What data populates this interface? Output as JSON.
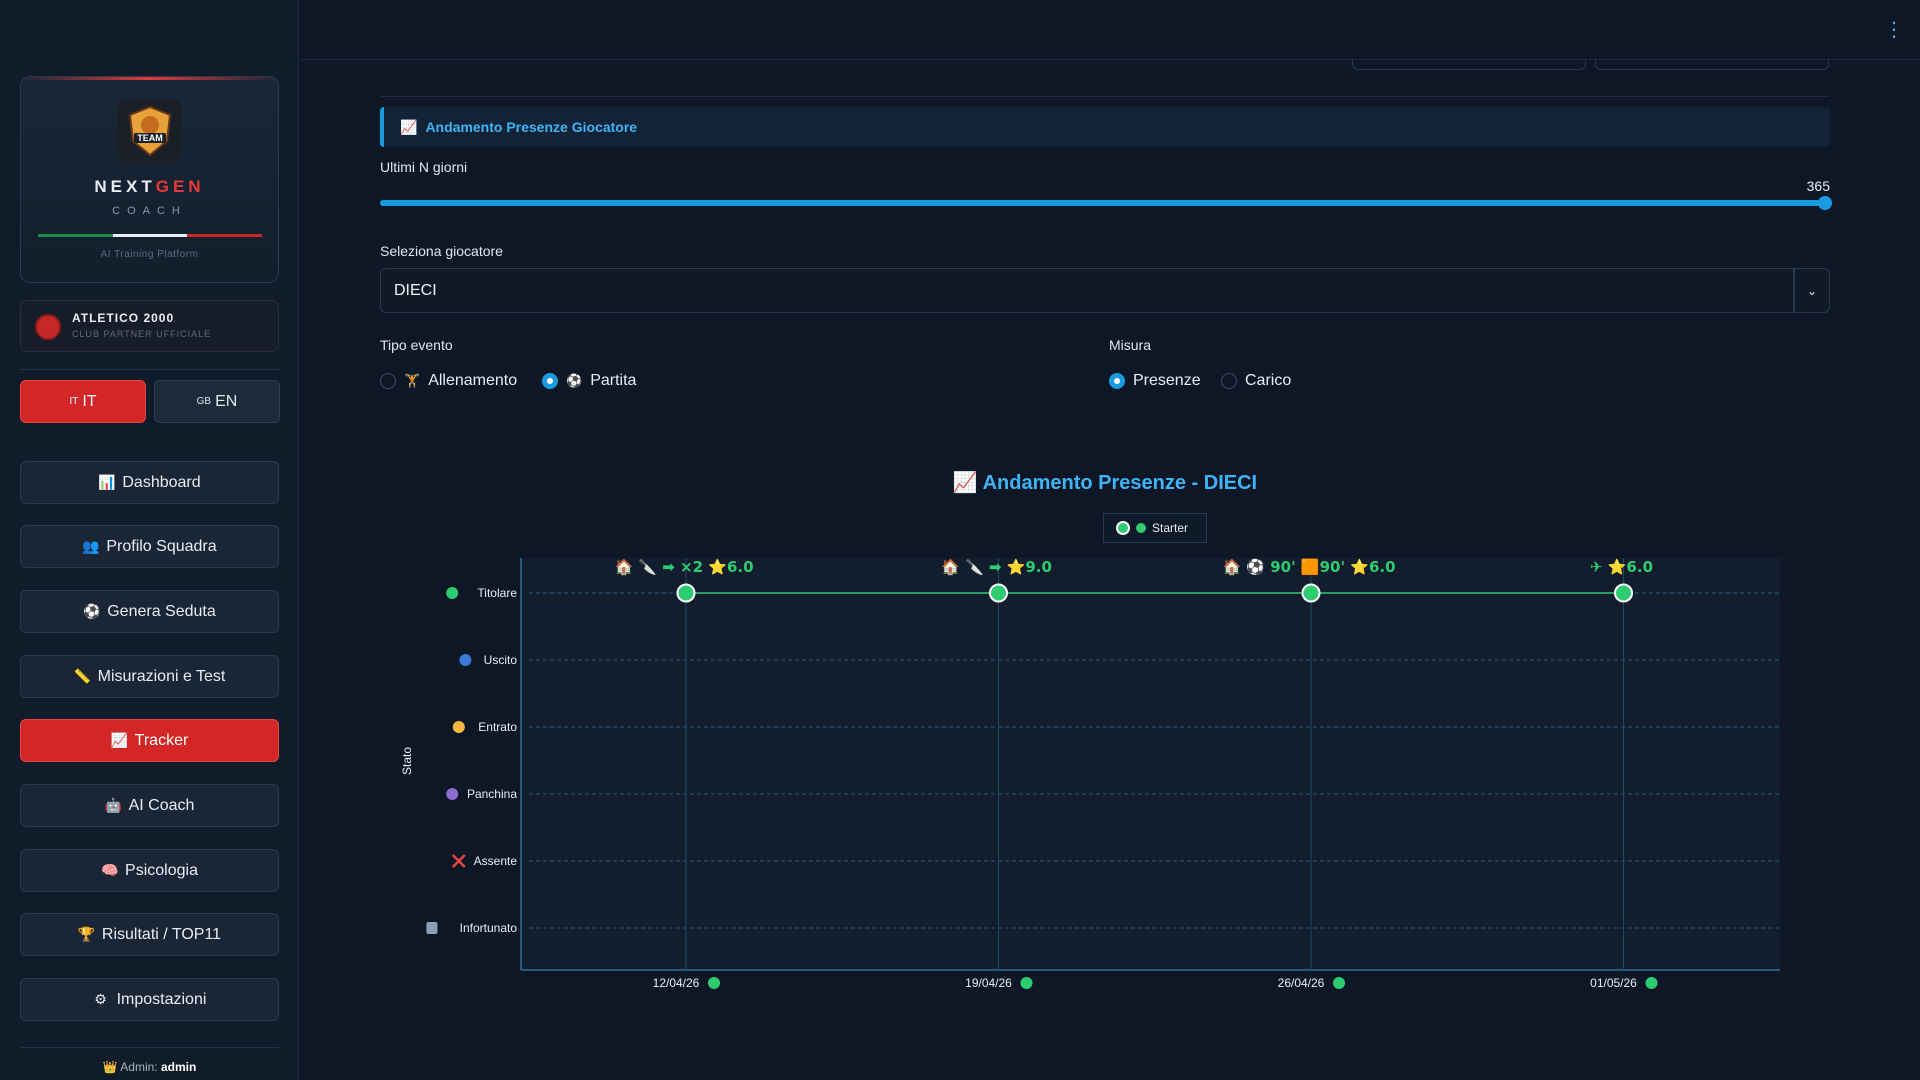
{
  "brand": {
    "name_a": "NEXT",
    "name_b": "GEN",
    "sub": "COACH",
    "tagline": "AI Training Platform",
    "logo_text": "TEAM"
  },
  "club": {
    "name": "ATLETICO 2000",
    "subtitle": "CLUB PARTNER UFFICIALE"
  },
  "lang": {
    "it": {
      "code": "IT",
      "flag": "IT"
    },
    "en": {
      "code": "EN",
      "flag": "GB"
    }
  },
  "nav": [
    {
      "label": "Dashboard",
      "icon": "📊"
    },
    {
      "label": "Profilo Squadra",
      "icon": "👥"
    },
    {
      "label": "Genera Seduta",
      "icon": "⚽"
    },
    {
      "label": "Misurazioni e Test",
      "icon": "📏"
    },
    {
      "label": "Tracker",
      "icon": "📈"
    },
    {
      "label": "AI Coach",
      "icon": "🤖"
    },
    {
      "label": "Psicologia",
      "icon": "🧠"
    },
    {
      "label": "Risultati / TOP11",
      "icon": "🏆"
    },
    {
      "label": "Impostazioni",
      "icon": "⚙"
    }
  ],
  "admin": {
    "prefix": "Admin:",
    "user": "admin"
  },
  "section": {
    "title": "Andamento Presenze Giocatore",
    "icon": "📈"
  },
  "slider": {
    "label": "Ultimi N giorni",
    "value": "365",
    "fraction": 1.0
  },
  "player": {
    "label": "Seleziona giocatore",
    "value": "DIECI"
  },
  "event_type": {
    "label": "Tipo evento",
    "options": [
      {
        "label": "Allenamento",
        "icon": "🏋",
        "selected": false
      },
      {
        "label": "Partita",
        "icon": "⚽",
        "selected": true
      }
    ]
  },
  "measure": {
    "label": "Misura",
    "options": [
      {
        "label": "Presenze",
        "selected": true
      },
      {
        "label": "Carico",
        "selected": false
      }
    ]
  },
  "chart_title": "Andamento Presenze - DIECI",
  "chart_title_icon": "📈",
  "legend": {
    "label": "Starter"
  },
  "colors": {
    "accent": "#1a9be0",
    "danger": "#d32626",
    "starter": "#2ecc71"
  },
  "chart_data": {
    "type": "scatter",
    "ylabel": "Stato",
    "y_categories": [
      {
        "label": "Titolare",
        "marker": "green-dot"
      },
      {
        "label": "Uscito",
        "marker": "blue-dot"
      },
      {
        "label": "Entrato",
        "marker": "yellow-dot"
      },
      {
        "label": "Panchina",
        "marker": "purple-dot"
      },
      {
        "label": "Assente",
        "marker": "red-x"
      },
      {
        "label": "Infortunato",
        "marker": "hospital"
      }
    ],
    "x": [
      "12/04/26",
      "19/04/26",
      "26/04/26",
      "01/05/26"
    ],
    "series": [
      {
        "name": "Starter",
        "values": [
          "Titolare",
          "Titolare",
          "Titolare",
          "Titolare"
        ]
      }
    ],
    "annotations": [
      {
        "icons": "🏠 🔪 ➡",
        "text": "×2",
        "rating": "6.0"
      },
      {
        "icons": "🏠 🔪 ➡",
        "text": "",
        "rating": "9.0"
      },
      {
        "icons": "🏠 ⚽",
        "text": "90' 🟧90'",
        "rating": "6.0"
      },
      {
        "icons": "✈",
        "text": "",
        "rating": "6.0"
      }
    ]
  }
}
